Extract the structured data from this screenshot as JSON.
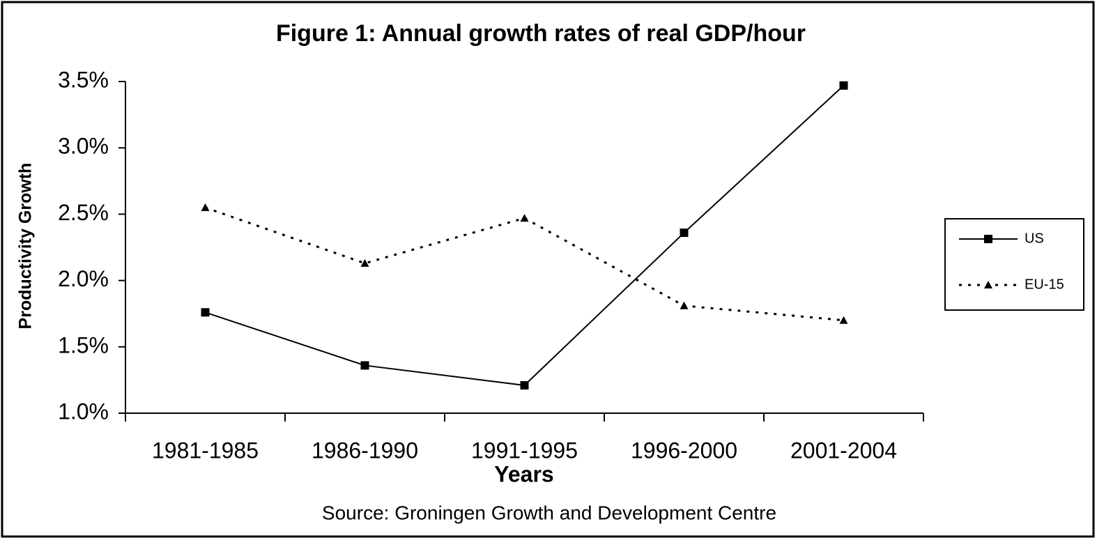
{
  "chart_data": {
    "type": "line",
    "title": "Figure 1:  Annual growth rates of real GDP/hour",
    "y_label": "Productivity Growth",
    "x_label": "Years",
    "source": "Source: Groningen Growth and Development Centre",
    "categories": [
      "1981-1985",
      "1986-1990",
      "1991-1995",
      "1996-2000",
      "2001-2004"
    ],
    "series": [
      {
        "name": "US",
        "color": "#000000",
        "line_style": "solid",
        "marker": "square",
        "values": [
          1.76,
          1.36,
          1.21,
          2.36,
          3.47
        ]
      },
      {
        "name": "EU-15",
        "color": "#000000",
        "line_style": "dotted",
        "marker": "triangle",
        "values": [
          2.55,
          2.13,
          2.47,
          1.81,
          1.7
        ]
      }
    ],
    "ylim": [
      1.0,
      3.5
    ],
    "yticks": [
      {
        "value": 1.0,
        "label": "1.0%"
      },
      {
        "value": 1.5,
        "label": "1.5%"
      },
      {
        "value": 2.0,
        "label": "2.0%"
      },
      {
        "value": 2.5,
        "label": "2.5%"
      },
      {
        "value": 3.0,
        "label": "3.0%"
      },
      {
        "value": 3.5,
        "label": "3.5%"
      }
    ],
    "grid": false,
    "legend": "right"
  }
}
